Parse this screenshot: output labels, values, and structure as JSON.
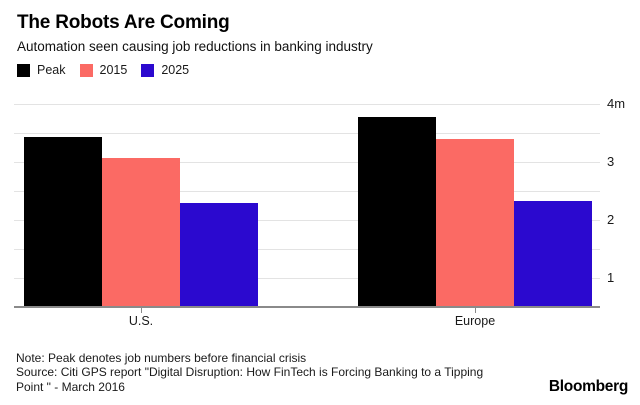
{
  "header": {
    "title": "The Robots Are Coming",
    "subtitle": "Automation seen causing job reductions in banking industry"
  },
  "chart_data": {
    "type": "bar",
    "categories": [
      "U.S.",
      "Europe"
    ],
    "series": [
      {
        "name": "Peak",
        "color": "#000000",
        "values": [
          3.43,
          3.78
        ]
      },
      {
        "name": "2015",
        "color": "#fb6a64",
        "values": [
          3.07,
          3.4
        ]
      },
      {
        "name": "2025",
        "color": "#2b09cf",
        "values": [
          2.3,
          2.32
        ]
      }
    ],
    "unit": "m",
    "ylim": [
      0.49,
      4.25
    ],
    "gridline_values": [
      1,
      1.5,
      2,
      2.5,
      3,
      3.5,
      4
    ],
    "y_tick_labels": [
      {
        "value": 1,
        "label": "1"
      },
      {
        "value": 2,
        "label": "2"
      },
      {
        "value": 3,
        "label": "3"
      },
      {
        "value": 4,
        "label": "4m"
      }
    ],
    "grid": true,
    "legend_position": "top-left",
    "title": "The Robots Are Coming",
    "subtitle": "Automation seen causing job reductions in banking industry",
    "xlabel": "",
    "ylabel": ""
  },
  "footer": {
    "note": "Note: Peak denotes job numbers before financial crisis",
    "source_line1": "Source: Citi GPS report \"Digital Disruption: How FinTech is Forcing Banking to a Tipping",
    "source_line2": "Point \" - March 2016",
    "brand": "Bloomberg"
  },
  "colors": {
    "background": "#ffffff",
    "gridline": "#e3e3e3",
    "axis_line": "#8a8a8a",
    "text": "#1a1a1a"
  }
}
